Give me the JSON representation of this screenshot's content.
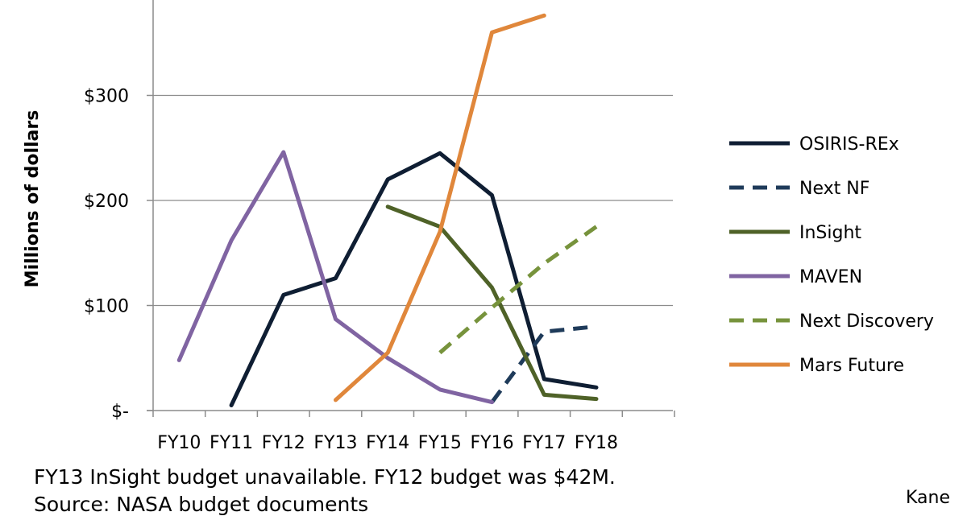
{
  "chart_data": {
    "type": "line",
    "title": "",
    "xlabel": "",
    "ylabel": "Millions of dollars",
    "categories": [
      "FY10",
      "FY11",
      "FY12",
      "FY13",
      "FY14",
      "FY15",
      "FY16",
      "FY17",
      "FY18"
    ],
    "y_ticks": [
      {
        "value": 0,
        "label": "$-"
      },
      {
        "value": 100,
        "label": "$100"
      },
      {
        "value": 200,
        "label": "$200"
      },
      {
        "value": 300,
        "label": "$300"
      }
    ],
    "ylim": [
      0,
      400
    ],
    "grid": true,
    "legend_position": "right",
    "series": [
      {
        "name": "OSIRIS-REx",
        "color": "#0f1e33",
        "dash": false,
        "values": [
          null,
          5,
          110,
          126,
          220,
          245,
          205,
          30,
          22
        ]
      },
      {
        "name": "Next NF",
        "color": "#1f3b5a",
        "dash": true,
        "values": [
          null,
          null,
          null,
          null,
          null,
          null,
          8,
          75,
          80
        ]
      },
      {
        "name": "InSight",
        "color": "#4f6228",
        "dash": false,
        "values": [
          null,
          null,
          null,
          null,
          194,
          175,
          117,
          15,
          11
        ]
      },
      {
        "name": "MAVEN",
        "color": "#8064a2",
        "dash": false,
        "values": [
          48,
          162,
          246,
          87,
          50,
          20,
          8,
          null,
          null
        ]
      },
      {
        "name": "Next Discovery",
        "color": "#77933c",
        "dash": true,
        "values": [
          null,
          null,
          null,
          null,
          null,
          55,
          98,
          140,
          175
        ]
      },
      {
        "name": "Mars Future",
        "color": "#e0873b",
        "dash": false,
        "values": [
          null,
          null,
          null,
          10,
          55,
          170,
          360,
          376,
          null
        ]
      }
    ]
  },
  "footnote": "FY13 InSight budget unavailable.  FY12 budget was $42M.",
  "footnote_line2": "Source: NASA budget documents",
  "credit": "Kane"
}
